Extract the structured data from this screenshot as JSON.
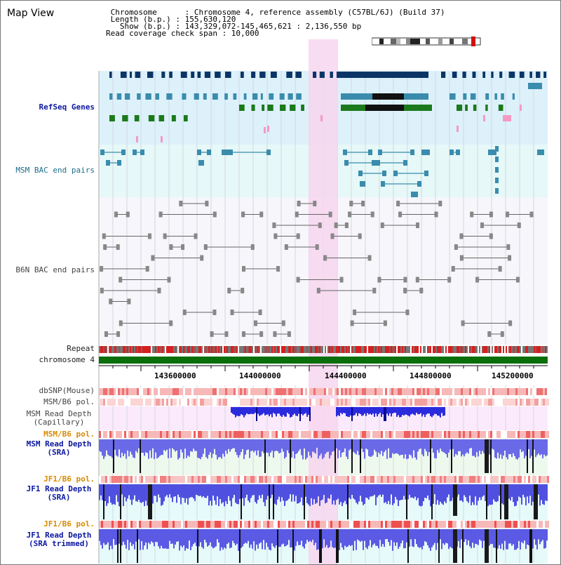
{
  "header": {
    "title": "Map View",
    "info_lines": [
      " Chromosome      : Chromosome 4, reference assembly (C57BL/6J) (Build 37)",
      " Length (b.p.) : 155,630,120",
      "   Show (b.p.) : 143,329,072-145,465,621 : 2,136,550 bp",
      "Read coverage check span : 10,000"
    ]
  },
  "tracks": {
    "refseq_label": "RefSeq Genes",
    "msm_bac_label": "MSM BAC end pairs",
    "b6n_bac_label": "B6N BAC end pairs",
    "repeat_label": "Repeat",
    "chromosome_label": "chromosome 4",
    "dbsnp_label": "dbSNP(Mouse)",
    "msm_b6_pol_label": "MSM/B6 pol.",
    "msm_depth_cap_label": "MSM Read Depth\n(Capillary)",
    "msm_b6_pol2_label": "MSM/B6 pol.",
    "msm_depth_sra_label": "MSM Read Depth\n(SRA)",
    "jf1_b6_pol_label": "JF1/B6 pol.",
    "jf1_depth_sra_label": "JF1 Read Depth\n(SRA)",
    "jf1_b6_pol2_label": "JF1/B6 pol.",
    "jf1_depth_trim_label": "JF1 Read Depth\n(SRA trimmed)"
  },
  "ruler": {
    "ticks": [
      "143600000",
      "144000000",
      "144400000",
      "144800000",
      "145200000"
    ]
  },
  "colors": {
    "refseq_bg": "#ddf1fb",
    "bac_bg": "#e6f8f8",
    "highlight": "#f7d6ee",
    "dark_navy": "#0b3566",
    "teal": "#3a8cad",
    "green": "#1b7a1b",
    "pink": "#f59ac4",
    "chromosome": "#0a6e0a"
  }
}
